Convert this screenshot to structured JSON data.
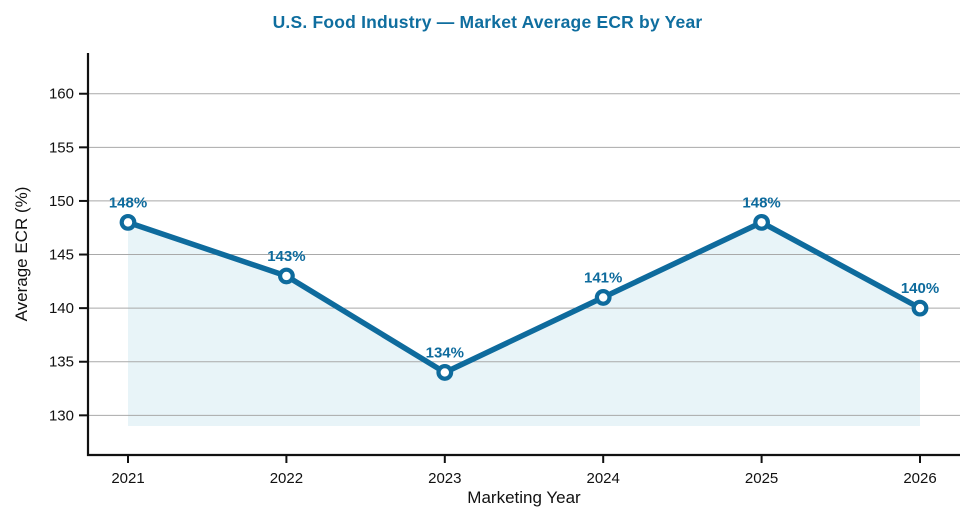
{
  "chart_data": {
    "type": "line",
    "title": "U.S. Food Industry — Market Average ECR by Year",
    "xlabel": "Marketing Year",
    "ylabel": "Average ECR (%)",
    "categories": [
      "2021",
      "2022",
      "2023",
      "2024",
      "2025",
      "2026"
    ],
    "series": [
      {
        "name": "Market Average ECR",
        "values": [
          148,
          143,
          134,
          141,
          148,
          140
        ],
        "point_labels": [
          "148%",
          "143%",
          "134%",
          "141%",
          "148%",
          "140%"
        ]
      }
    ],
    "yticks": [
      130,
      135,
      140,
      145,
      150,
      155,
      160
    ],
    "ylim": [
      126.3,
      163.8
    ],
    "fill_baseline": 129,
    "grid": true,
    "legend_position": "none",
    "colors": {
      "line": "#0e6b9d",
      "marker_ring": "#0e6b9d",
      "marker_fill": "#ffffff",
      "area_fill": "#e8f4f8",
      "data_label": "#0e6b9d",
      "title": "#0f6e9f",
      "grid": "#a9a9a9",
      "axis": "#111111",
      "tick_text": "#111111"
    }
  }
}
